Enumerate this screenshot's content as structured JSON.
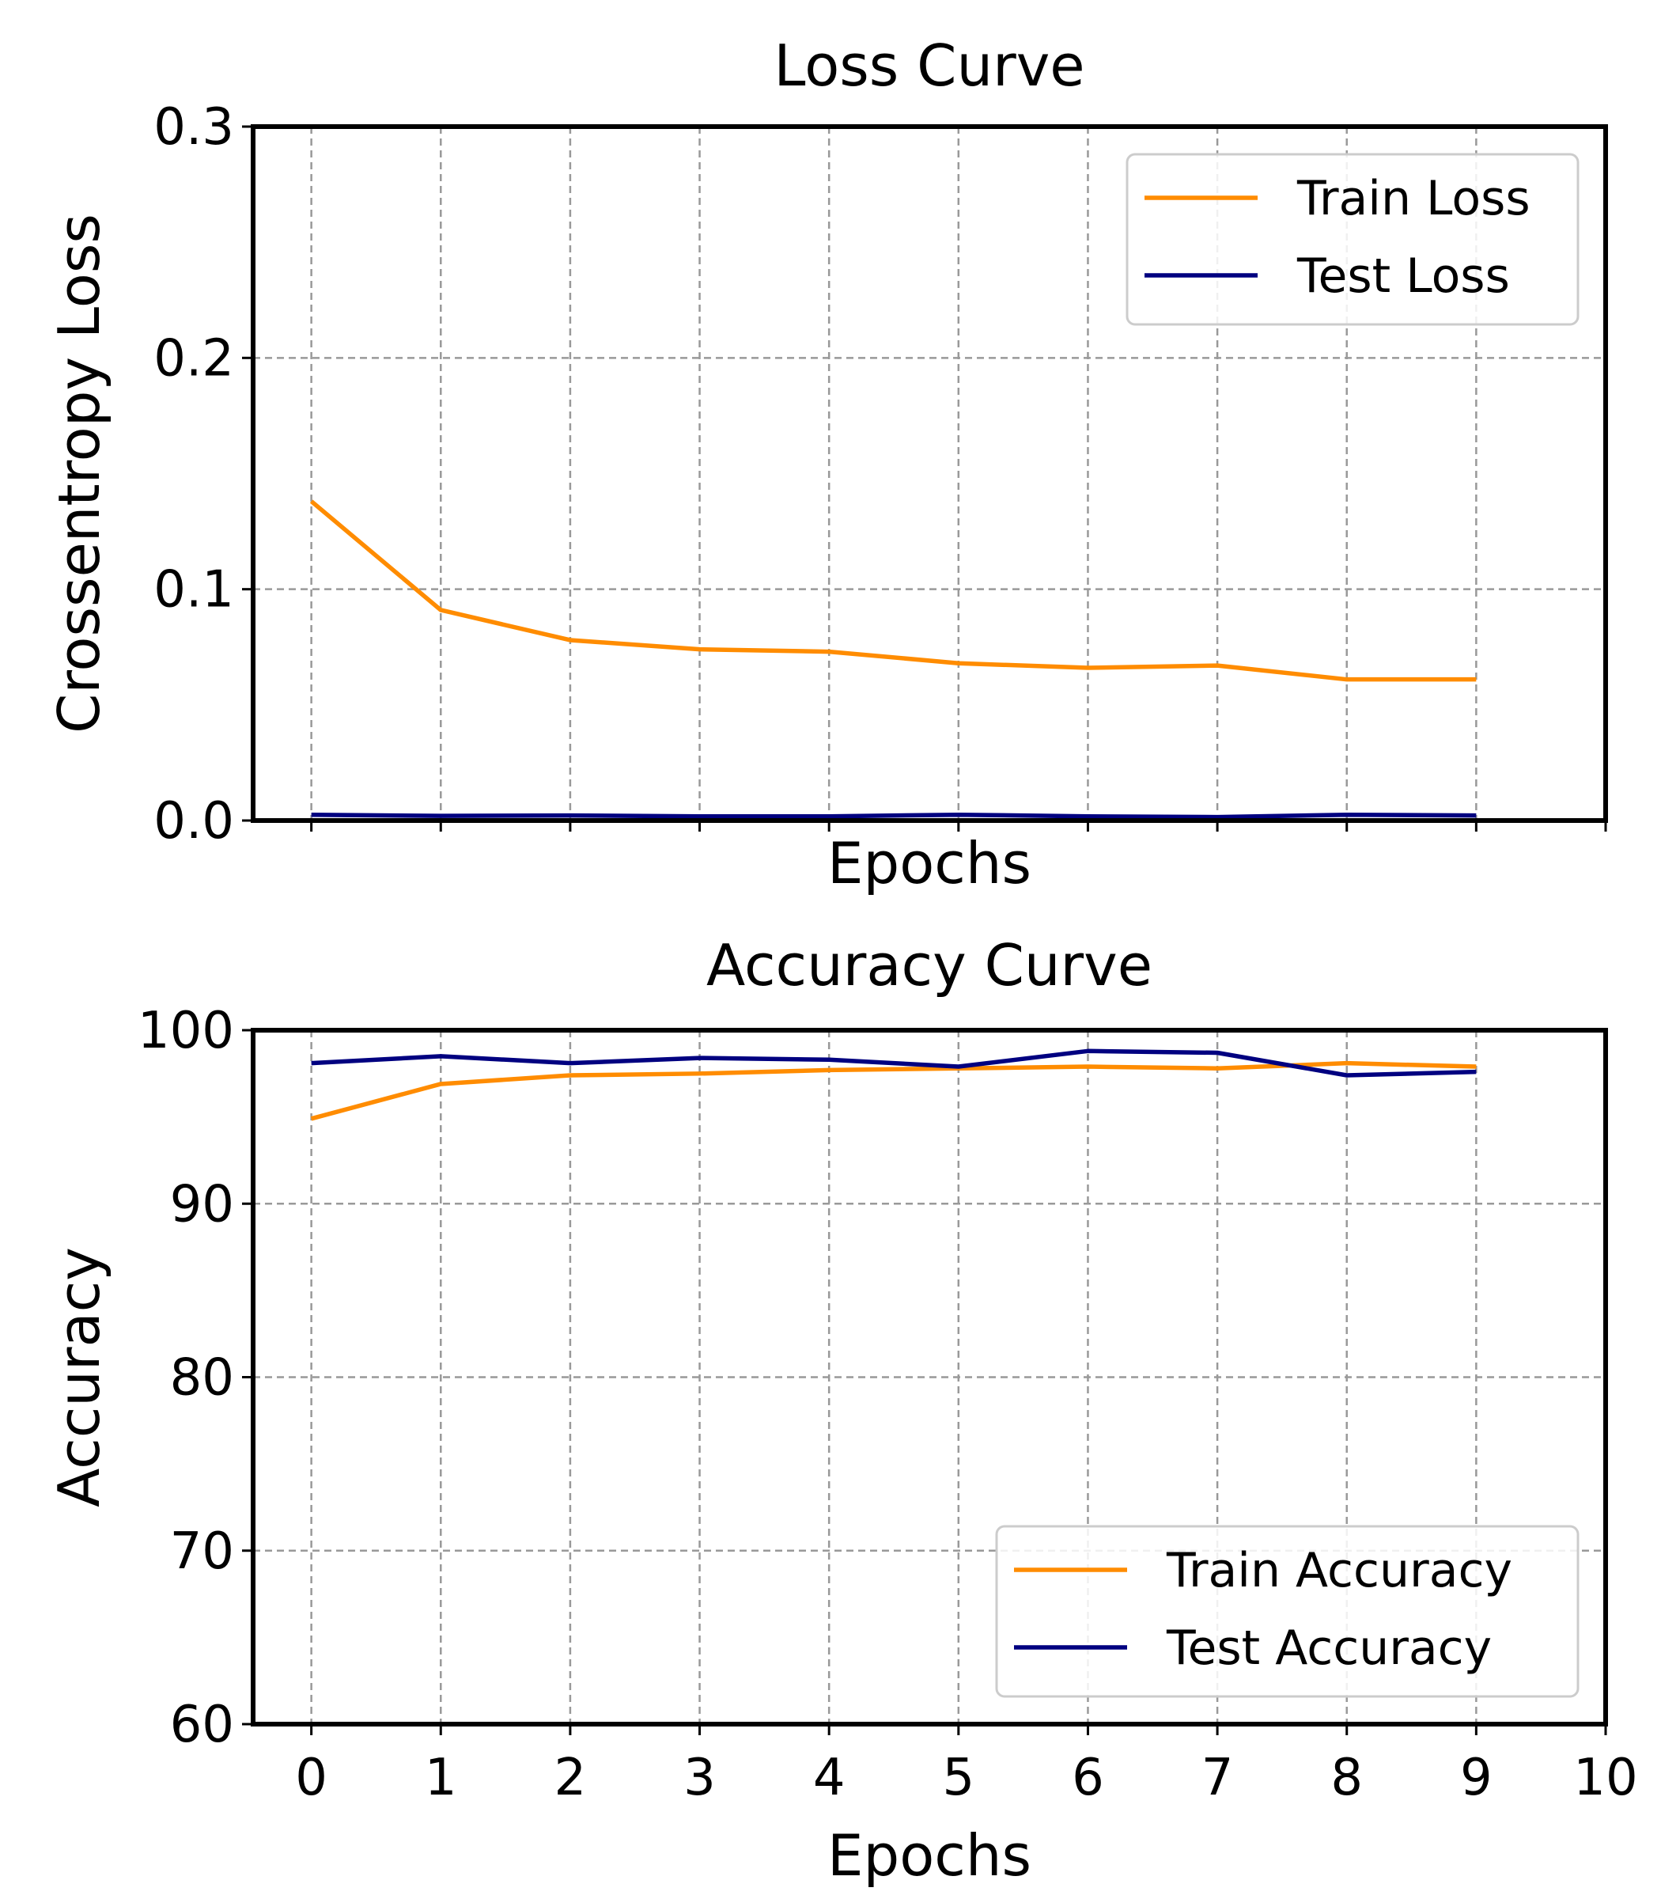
{
  "chart_data": [
    {
      "type": "line",
      "title": "Loss Curve",
      "xlabel": "Epochs",
      "ylabel": "Crossentropy Loss",
      "x": [
        0,
        1,
        2,
        3,
        4,
        5,
        6,
        7,
        8,
        9
      ],
      "xlim": [
        -0.45,
        10
      ],
      "ylim": [
        0,
        0.3
      ],
      "yticks": [
        0.0,
        0.1,
        0.2,
        0.3
      ],
      "ytick_labels": [
        "0.0",
        "0.1",
        "0.2",
        "0.3"
      ],
      "xticks": [
        0,
        1,
        2,
        3,
        4,
        5,
        6,
        7,
        8,
        9,
        10
      ],
      "xtick_labels_shown": false,
      "grid": true,
      "legend_position": "upper right",
      "series": [
        {
          "name": "Train Loss",
          "color": "#FF8C00",
          "values": [
            0.138,
            0.091,
            0.078,
            0.074,
            0.073,
            0.068,
            0.066,
            0.067,
            0.061,
            0.061
          ]
        },
        {
          "name": "Test Loss",
          "color": "#000080",
          "values": [
            0.0025,
            0.002,
            0.0022,
            0.0018,
            0.0018,
            0.0025,
            0.0018,
            0.0015,
            0.0025,
            0.0022
          ]
        }
      ]
    },
    {
      "type": "line",
      "title": "Accuracy Curve",
      "xlabel": "Epochs",
      "ylabel": "Accuracy",
      "x": [
        0,
        1,
        2,
        3,
        4,
        5,
        6,
        7,
        8,
        9
      ],
      "xlim": [
        -0.45,
        10
      ],
      "ylim": [
        60,
        100
      ],
      "yticks": [
        60,
        70,
        80,
        90,
        100
      ],
      "ytick_labels": [
        "60",
        "70",
        "80",
        "90",
        "100"
      ],
      "xticks": [
        0,
        1,
        2,
        3,
        4,
        5,
        6,
        7,
        8,
        9,
        10
      ],
      "xtick_labels": [
        "0",
        "1",
        "2",
        "3",
        "4",
        "5",
        "6",
        "7",
        "8",
        "9",
        "10"
      ],
      "grid": true,
      "legend_position": "lower right",
      "series": [
        {
          "name": "Train Accuracy",
          "color": "#FF8C00",
          "values": [
            94.9,
            96.9,
            97.4,
            97.5,
            97.7,
            97.8,
            97.9,
            97.8,
            98.1,
            97.9
          ]
        },
        {
          "name": "Test Accuracy",
          "color": "#000080",
          "values": [
            98.1,
            98.5,
            98.1,
            98.4,
            98.3,
            97.9,
            98.8,
            98.7,
            97.4,
            97.6
          ]
        }
      ]
    }
  ]
}
